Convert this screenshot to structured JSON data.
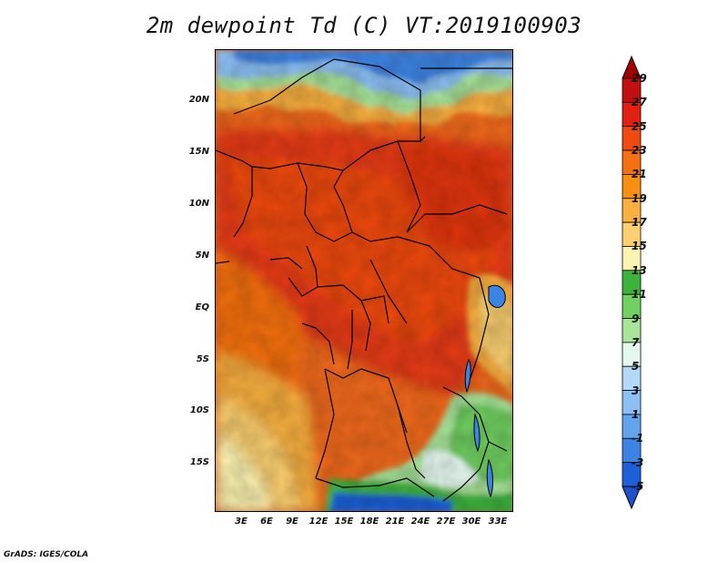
{
  "title": "2m dewpoint Td (C) VT:2019100903",
  "credit": "GrADS: IGES/COLA",
  "map": {
    "lat_labels": [
      "20N",
      "15N",
      "10N",
      "5N",
      "EQ",
      "5S",
      "10S",
      "15S"
    ],
    "lon_labels": [
      "3E",
      "6E",
      "9E",
      "12E",
      "15E",
      "18E",
      "21E",
      "24E",
      "27E",
      "30E",
      "33E"
    ]
  },
  "colorbar": {
    "labels": [
      "29",
      "27",
      "25",
      "23",
      "21",
      "19",
      "17",
      "15",
      "13",
      "11",
      "9",
      "7",
      "5",
      "3",
      "1",
      "-1",
      "-3",
      "-5"
    ],
    "colors": [
      "#a00000",
      "#c01010",
      "#e02010",
      "#f04a10",
      "#f57010",
      "#f79010",
      "#f9b040",
      "#fcd070",
      "#fdf3b0",
      "#3cb43c",
      "#70d060",
      "#a8e49a",
      "#e4f8f0",
      "#b4d8f8",
      "#8cc0f4",
      "#64a4ee",
      "#3c84e4",
      "#1e60d8",
      "#1e4fcf"
    ]
  }
}
